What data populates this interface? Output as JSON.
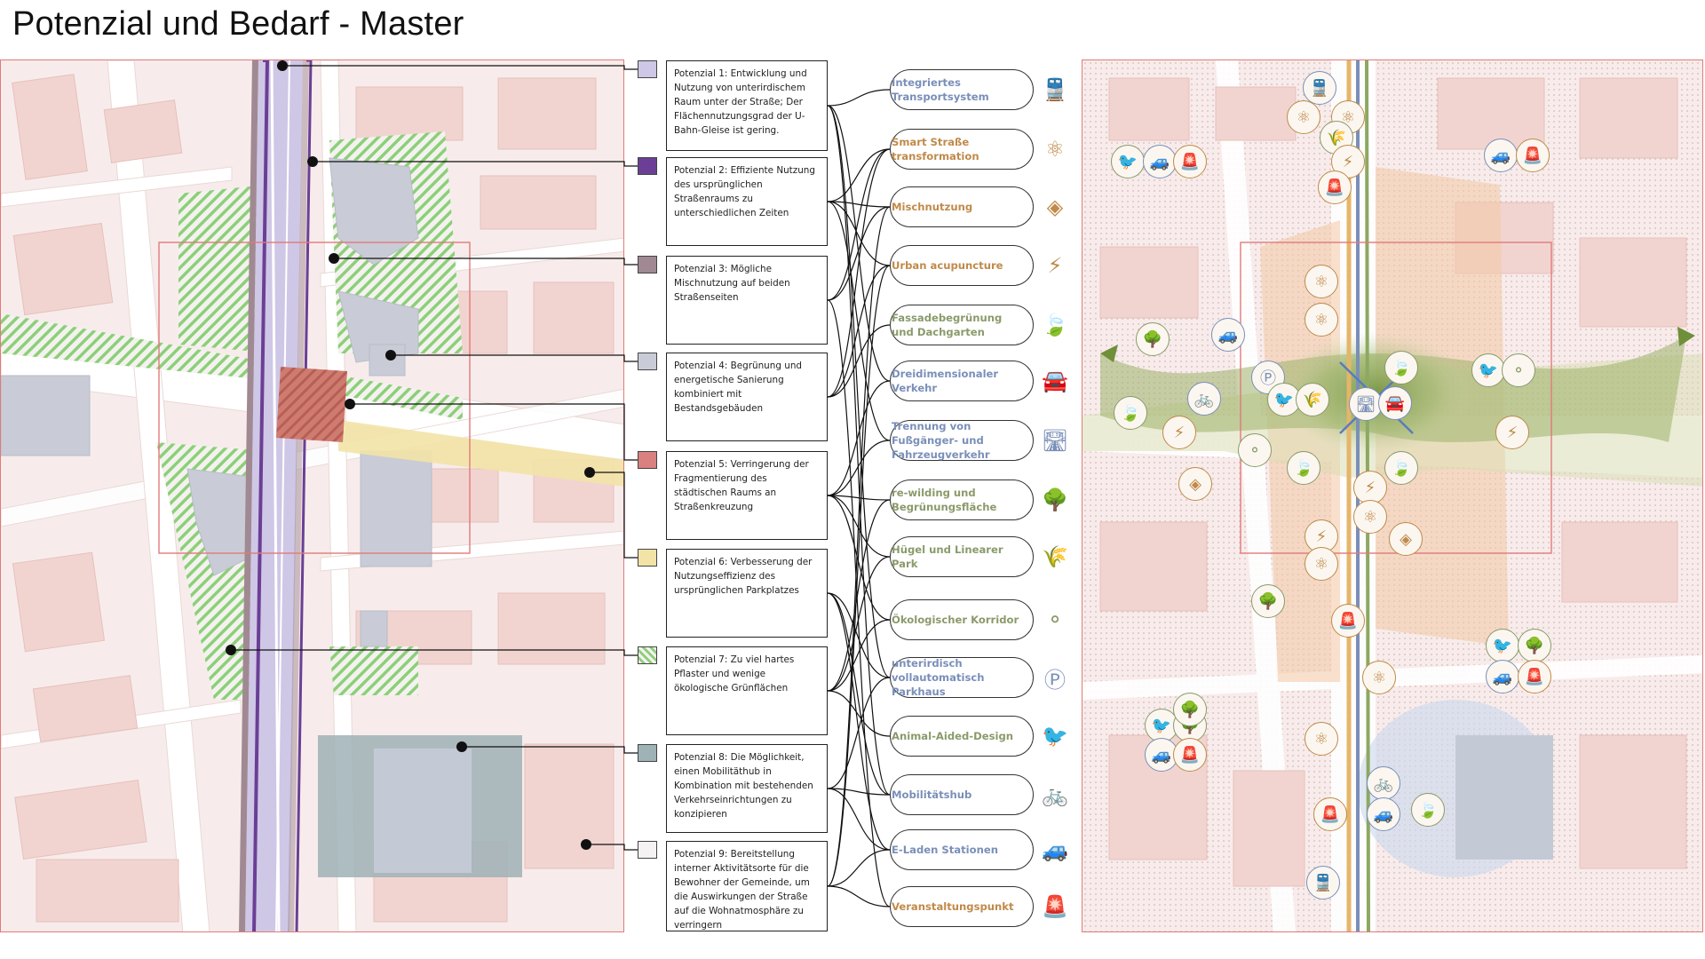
{
  "title": "Potenzial und Bedarf - Master",
  "potentials": [
    {
      "text": "Potenzial 1: Entwicklung und Nutzung von unterirdischem Raum unter der Straße; Der Flächennutzungsgrad der U-Bahn-Gleise ist gering.",
      "color": "#cfc7e6"
    },
    {
      "text": "Potenzial 2: Effiziente Nutzung des ursprünglichen Straßenraums zu unterschiedlichen Zeiten",
      "color": "#6b3f95"
    },
    {
      "text": "Potenzial 3: Mögliche Mischnutzung auf beiden Straßenseiten",
      "color": "#a08992"
    },
    {
      "text": "Potenzial 4: Begrünung und energetische Sanierung kombiniert mit Bestandsgebäuden",
      "color": "#c9ccd6"
    },
    {
      "text": "Potenzial 5: Verringerung der Fragmentierung des städtischen Raums an Straßenkreuzung",
      "color": "#d98080"
    },
    {
      "text": "Potenzial 6: Verbesserung der Nutzungseffizienz des ursprünglichen Parkplatzes",
      "color": "#f2e3a6"
    },
    {
      "text": "Potenzial 7: Zu viel hartes Pflaster und wenige ökologische Grünflächen",
      "color": "#a8d89a"
    },
    {
      "text": "Potenzial 8: Die Möglichkeit, einen Mobilitäthub in Kombination mit bestehenden Verkehrseinrichtungen zu konzipieren",
      "color": "#9fb2b6"
    },
    {
      "text": "Potenzial 9: Bereitstellung interner Aktivitätsorte für die Bewohner der Gemeinde, um die Auswirkungen der Straße auf die Wohnatmosphäre zu verringern",
      "color": "#f4f2f2"
    }
  ],
  "needs": [
    {
      "label": "Integriertes Transportsystem",
      "color": "#7a8fb8",
      "icon": "train-icon",
      "glyph": "🚆"
    },
    {
      "label": "Smart Straße transformation",
      "color": "#c08a4a",
      "icon": "atom-icon",
      "glyph": "⚛"
    },
    {
      "label": "Mischnutzung",
      "color": "#c08a4a",
      "icon": "shapes-icon",
      "glyph": "◈"
    },
    {
      "label": "Urban acupuncture",
      "color": "#c08a4a",
      "icon": "energy-icon",
      "glyph": "⚡"
    },
    {
      "label": "Fassadebegrünung und Dachgarten",
      "color": "#8a9a6a",
      "icon": "leaf-icon",
      "glyph": "🍃"
    },
    {
      "label": "Dreidimensionaler Verkehr",
      "color": "#7a8fb8",
      "icon": "car-person-icon",
      "glyph": "🚘"
    },
    {
      "label": "Trennung von Fußgänger- und Fahrzeugverkehr",
      "color": "#7a8fb8",
      "icon": "road-icon",
      "glyph": "🛣"
    },
    {
      "label": "re-wilding und Begrünungsfläche",
      "color": "#8a9a6a",
      "icon": "trees-icon",
      "glyph": "🌳"
    },
    {
      "label": "Hügel und Linearer Park",
      "color": "#8a9a6a",
      "icon": "grass-icon",
      "glyph": "🌾"
    },
    {
      "label": "Ökologischer Korridor",
      "color": "#8a9a6a",
      "icon": "network-icon",
      "glyph": "⚬"
    },
    {
      "label": "unterirdisch vollautomatisch Parkhaus",
      "color": "#7a8fb8",
      "icon": "parking-icon",
      "glyph": "Ⓟ"
    },
    {
      "label": "Animal-Aided-Design",
      "color": "#8a9a6a",
      "icon": "bird-icon",
      "glyph": "🐦"
    },
    {
      "label": "Mobilitätshub",
      "color": "#7a8fb8",
      "icon": "bicycle-icon",
      "glyph": "🚲"
    },
    {
      "label": "E-Laden Stationen",
      "color": "#7a8fb8",
      "icon": "charging-car-icon",
      "glyph": "🚙"
    },
    {
      "label": "Veranstaltungspunkt",
      "color": "#c08a4a",
      "icon": "event-light-icon",
      "glyph": "🚨"
    }
  ]
}
